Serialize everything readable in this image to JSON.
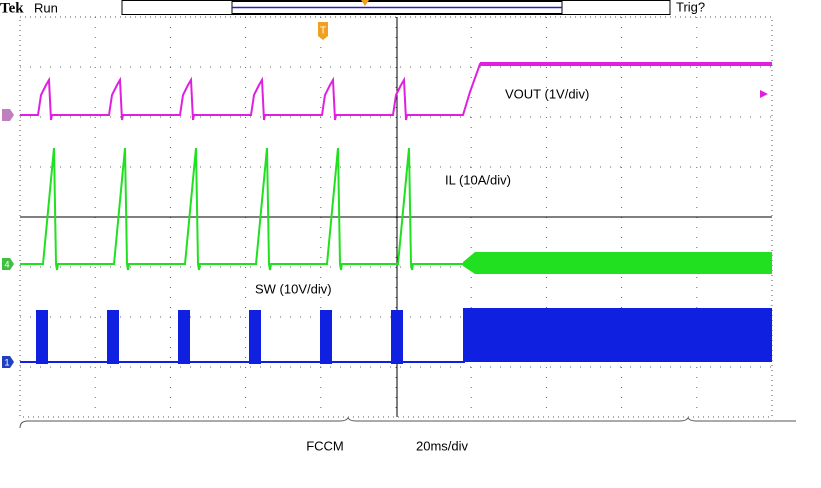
{
  "header": {
    "brand": "Tek",
    "status": "Run",
    "trigger": "Trig?"
  },
  "channels": [
    {
      "label": "VOUT (1V/div)"
    },
    {
      "label": "IL (10A/div)"
    },
    {
      "label": "SW (10V/div)"
    }
  ],
  "markers": {
    "ch4": "4",
    "ch1": "1",
    "trigger": "T"
  },
  "footer": {
    "mode": "FCCM",
    "timebase": "20ms/div"
  }
}
